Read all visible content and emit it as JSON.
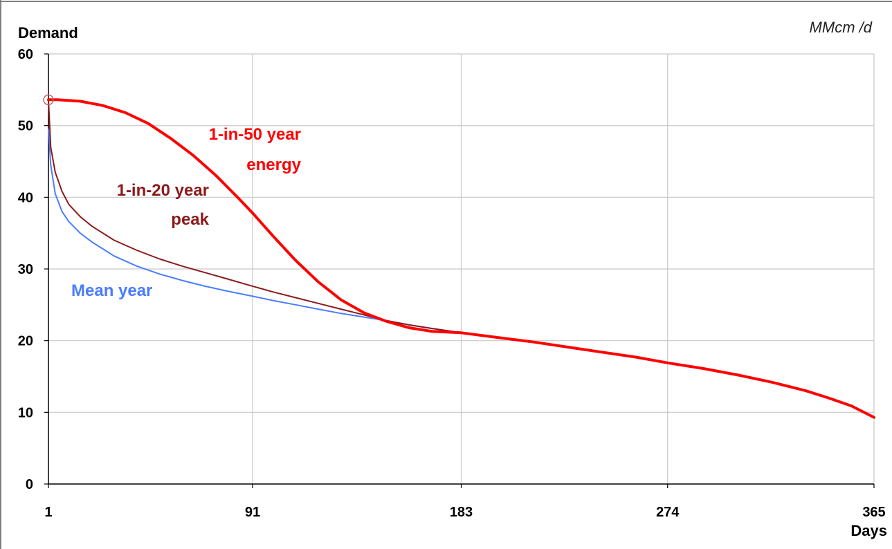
{
  "chart_data": {
    "type": "line",
    "ylabel": "Demand",
    "xlabel": "Days",
    "unit": "MMcm /d",
    "xlim": [
      1,
      365
    ],
    "ylim": [
      0,
      60
    ],
    "x_ticks": [
      "1",
      "91",
      "183",
      "274",
      "365"
    ],
    "y_ticks": [
      "0",
      "10",
      "20",
      "30",
      "40",
      "50",
      "60"
    ],
    "grid": true,
    "series": [
      {
        "name": "1-in-50 year energy",
        "label_lines": [
          "1-in-50 year",
          "energy"
        ],
        "color": "#ff0000",
        "points": [
          [
            1,
            53.6
          ],
          [
            5,
            53.6
          ],
          [
            15,
            53.4
          ],
          [
            25,
            52.8
          ],
          [
            35,
            51.8
          ],
          [
            45,
            50.3
          ],
          [
            55,
            48.2
          ],
          [
            65,
            45.8
          ],
          [
            75,
            43.0
          ],
          [
            85,
            39.8
          ],
          [
            91,
            37.8
          ],
          [
            100,
            34.6
          ],
          [
            110,
            31.2
          ],
          [
            120,
            28.2
          ],
          [
            130,
            25.7
          ],
          [
            140,
            23.9
          ],
          [
            150,
            22.7
          ],
          [
            160,
            21.8
          ],
          [
            170,
            21.3
          ],
          [
            183,
            21.1
          ],
          [
            200,
            20.4
          ],
          [
            215,
            19.8
          ],
          [
            230,
            19.1
          ],
          [
            245,
            18.4
          ],
          [
            260,
            17.7
          ],
          [
            274,
            16.9
          ],
          [
            290,
            16.1
          ],
          [
            305,
            15.2
          ],
          [
            320,
            14.2
          ],
          [
            335,
            13.0
          ],
          [
            345,
            12.0
          ],
          [
            355,
            10.9
          ],
          [
            365,
            9.3
          ]
        ]
      },
      {
        "name": "1-in-20 year peak",
        "label_lines": [
          "1-in-20 year",
          "peak"
        ],
        "color": "#8b1a1a",
        "points": [
          [
            1,
            53.6
          ],
          [
            2,
            47.0
          ],
          [
            4,
            43.5
          ],
          [
            7,
            40.8
          ],
          [
            10,
            39.0
          ],
          [
            15,
            37.3
          ],
          [
            20,
            36.0
          ],
          [
            30,
            34.0
          ],
          [
            40,
            32.6
          ],
          [
            50,
            31.4
          ],
          [
            60,
            30.4
          ],
          [
            70,
            29.5
          ],
          [
            80,
            28.6
          ],
          [
            91,
            27.6
          ],
          [
            100,
            26.8
          ],
          [
            110,
            26.0
          ],
          [
            120,
            25.2
          ],
          [
            130,
            24.4
          ],
          [
            140,
            23.6
          ],
          [
            150,
            22.8
          ],
          [
            160,
            22.2
          ],
          [
            170,
            21.7
          ],
          [
            183,
            21.1
          ]
        ]
      },
      {
        "name": "Mean year",
        "label_lines": [
          "Mean year"
        ],
        "color": "#4a7cff",
        "points": [
          [
            1,
            49.5
          ],
          [
            2,
            44.5
          ],
          [
            4,
            40.5
          ],
          [
            7,
            38.0
          ],
          [
            10,
            36.6
          ],
          [
            15,
            35.0
          ],
          [
            20,
            33.8
          ],
          [
            30,
            31.8
          ],
          [
            40,
            30.4
          ],
          [
            50,
            29.3
          ],
          [
            60,
            28.4
          ],
          [
            70,
            27.6
          ],
          [
            80,
            26.9
          ],
          [
            91,
            26.2
          ],
          [
            100,
            25.6
          ],
          [
            110,
            25.0
          ],
          [
            120,
            24.4
          ],
          [
            130,
            23.8
          ],
          [
            140,
            23.3
          ],
          [
            150,
            22.8
          ],
          [
            160,
            22.2
          ],
          [
            170,
            21.7
          ],
          [
            183,
            21.1
          ]
        ]
      }
    ],
    "annotations": [
      {
        "type": "circle-marker",
        "x": 1,
        "y": 53.6,
        "color": "#b56a6a"
      }
    ]
  }
}
